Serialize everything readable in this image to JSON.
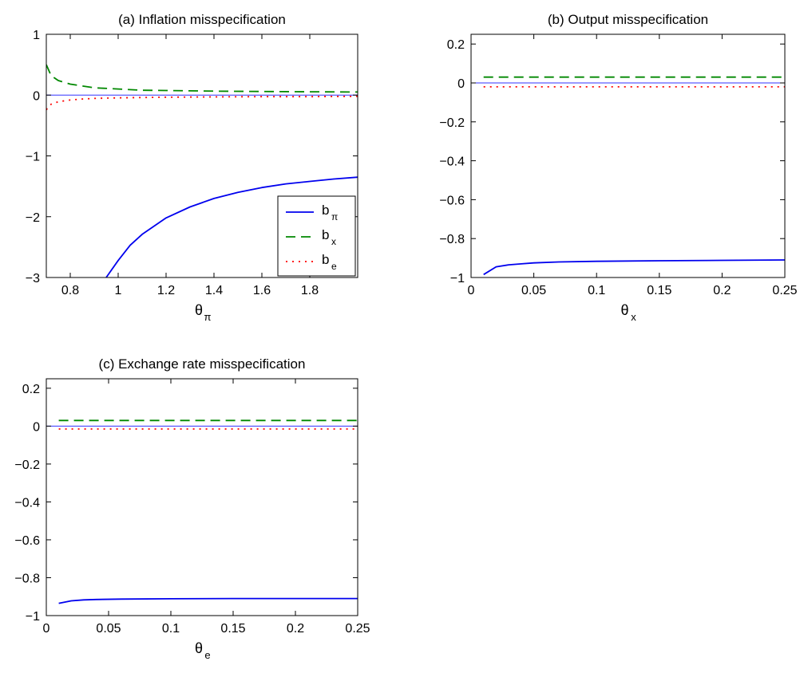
{
  "colors": {
    "b_pi": "#0000ee",
    "b_x": "#008800",
    "b_e": "#ff0000",
    "zero_line": "#3333ff",
    "axes": "#000000",
    "background": "#ffffff"
  },
  "legend": {
    "location": "lower-right of panel (a)",
    "entries": [
      {
        "main": "b",
        "sub": "π",
        "style": "solid"
      },
      {
        "main": "b",
        "sub": "x",
        "style": "dashed"
      },
      {
        "main": "b",
        "sub": "e",
        "style": "dotted"
      }
    ]
  },
  "chart_data": [
    {
      "type": "line",
      "title": "(a) Inflation misspecification",
      "xlabel": "θ",
      "xlabel_sub": "π",
      "ylabel": "",
      "xlim": [
        0.7,
        2.0
      ],
      "ylim": [
        -3,
        1
      ],
      "xticks": [
        0.8,
        1.0,
        1.2,
        1.4,
        1.6,
        1.8
      ],
      "xtick_labels": [
        "0.8",
        "1",
        "1.2",
        "1.4",
        "1.6",
        "1.8"
      ],
      "yticks": [
        1,
        0,
        -1,
        -2,
        -3
      ],
      "ytick_labels": [
        "1",
        "0",
        "−1",
        "−2",
        "−3"
      ],
      "hline_at_zero": true,
      "grid": false,
      "series": [
        {
          "key": "b_pi",
          "style": "solid",
          "x": [
            0.95,
            1.0,
            1.05,
            1.1,
            1.2,
            1.3,
            1.4,
            1.5,
            1.6,
            1.7,
            1.8,
            1.9,
            2.0
          ],
          "y": [
            -3.0,
            -2.72,
            -2.47,
            -2.29,
            -2.02,
            -1.84,
            -1.7,
            -1.6,
            -1.52,
            -1.46,
            -1.42,
            -1.38,
            -1.35
          ]
        },
        {
          "key": "b_x",
          "style": "dashed",
          "x": [
            0.7,
            0.72,
            0.75,
            0.8,
            0.85,
            0.9,
            1.0,
            1.1,
            1.2,
            1.4,
            1.6,
            1.8,
            2.0
          ],
          "y": [
            0.5,
            0.32,
            0.24,
            0.18,
            0.15,
            0.12,
            0.1,
            0.08,
            0.075,
            0.065,
            0.06,
            0.055,
            0.05
          ]
        },
        {
          "key": "b_e",
          "style": "dotted",
          "x": [
            0.7,
            0.72,
            0.75,
            0.8,
            0.85,
            0.9,
            1.0,
            1.1,
            1.2,
            1.4,
            1.6,
            1.8,
            2.0
          ],
          "y": [
            -0.24,
            -0.15,
            -0.11,
            -0.08,
            -0.065,
            -0.055,
            -0.045,
            -0.04,
            -0.035,
            -0.03,
            -0.025,
            -0.025,
            -0.02
          ]
        }
      ]
    },
    {
      "type": "line",
      "title": "(b) Output misspecification",
      "xlabel": "θ",
      "xlabel_sub": "x",
      "ylabel": "",
      "xlim": [
        0,
        0.25
      ],
      "ylim": [
        -1,
        0.25
      ],
      "xticks": [
        0,
        0.05,
        0.1,
        0.15,
        0.2,
        0.25
      ],
      "xtick_labels": [
        "0",
        "0.05",
        "0.1",
        "0.15",
        "0.2",
        "0.25"
      ],
      "yticks": [
        0.2,
        0,
        -0.2,
        -0.4,
        -0.6,
        -0.8,
        -1
      ],
      "ytick_labels": [
        "0.2",
        "0",
        "−0.2",
        "−0.4",
        "−0.6",
        "−0.8",
        "−1"
      ],
      "hline_at_zero": true,
      "grid": false,
      "series": [
        {
          "key": "b_pi",
          "style": "solid",
          "x": [
            0.01,
            0.02,
            0.03,
            0.04,
            0.05,
            0.07,
            0.1,
            0.15,
            0.2,
            0.25
          ],
          "y": [
            -0.985,
            -0.945,
            -0.935,
            -0.93,
            -0.925,
            -0.92,
            -0.917,
            -0.914,
            -0.912,
            -0.91
          ]
        },
        {
          "key": "b_x",
          "style": "dashed",
          "x": [
            0.01,
            0.25
          ],
          "y": [
            0.03,
            0.03
          ]
        },
        {
          "key": "b_e",
          "style": "dotted",
          "x": [
            0.01,
            0.25
          ],
          "y": [
            -0.02,
            -0.02
          ]
        }
      ]
    },
    {
      "type": "line",
      "title": "(c) Exchange rate misspecification",
      "xlabel": "θ",
      "xlabel_sub": "e",
      "ylabel": "",
      "xlim": [
        0,
        0.25
      ],
      "ylim": [
        -1,
        0.25
      ],
      "xticks": [
        0,
        0.05,
        0.1,
        0.15,
        0.2,
        0.25
      ],
      "xtick_labels": [
        "0",
        "0.05",
        "0.1",
        "0.15",
        "0.2",
        "0.25"
      ],
      "yticks": [
        0.2,
        0,
        -0.2,
        -0.4,
        -0.6,
        -0.8,
        -1
      ],
      "ytick_labels": [
        "0.2",
        "0",
        "−0.2",
        "−0.4",
        "−0.6",
        "−0.8",
        "−1"
      ],
      "hline_at_zero": true,
      "grid": false,
      "series": [
        {
          "key": "b_pi",
          "style": "solid",
          "x": [
            0.01,
            0.02,
            0.03,
            0.04,
            0.06,
            0.1,
            0.15,
            0.2,
            0.25
          ],
          "y": [
            -0.935,
            -0.922,
            -0.917,
            -0.915,
            -0.913,
            -0.911,
            -0.91,
            -0.91,
            -0.91
          ]
        },
        {
          "key": "b_x",
          "style": "dashed",
          "x": [
            0.01,
            0.25
          ],
          "y": [
            0.03,
            0.03
          ]
        },
        {
          "key": "b_e",
          "style": "dotted",
          "x": [
            0.01,
            0.25
          ],
          "y": [
            -0.015,
            -0.015
          ]
        }
      ]
    }
  ]
}
